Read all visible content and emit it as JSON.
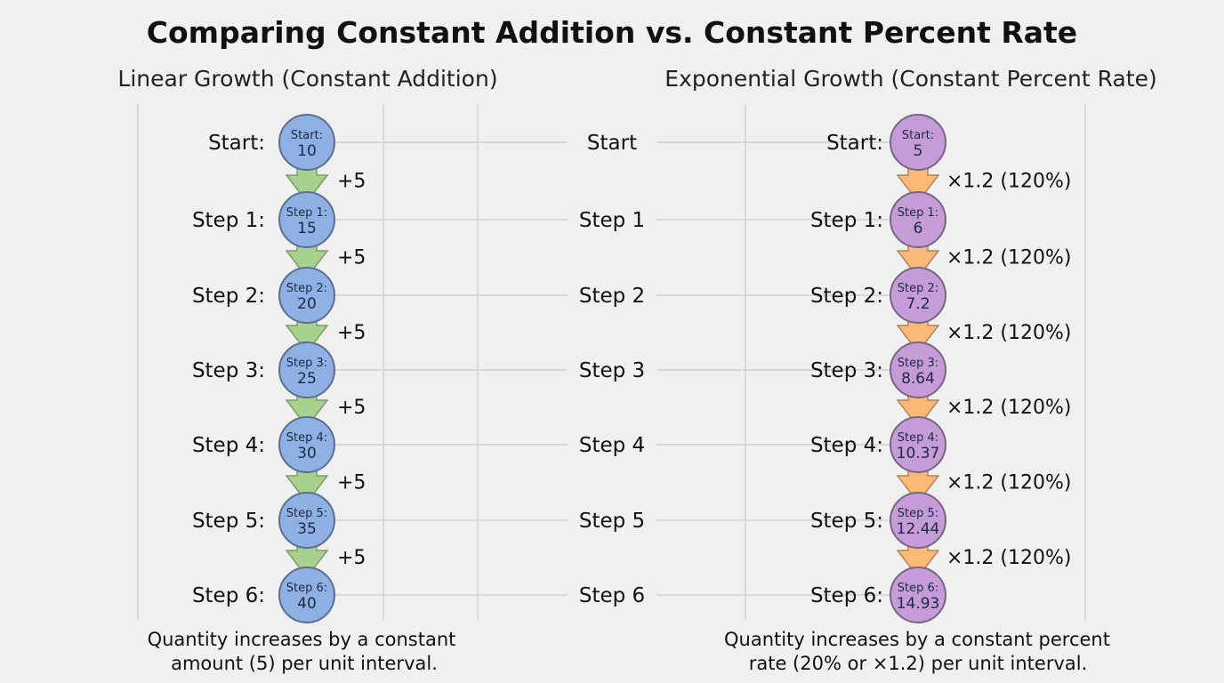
{
  "title": "Comparing Constant Addition vs. Constant Percent Rate",
  "colors": {
    "background": "#f0f0f0",
    "linear_node_fill": "#8fb0e2",
    "linear_node_stroke": "#5b6f90",
    "linear_arrow_fill": "#a9d18e",
    "linear_arrow_stroke": "#7d9a6c",
    "exp_node_fill": "#c59bd8",
    "exp_node_stroke": "#76667f",
    "exp_arrow_fill": "#fbb978",
    "exp_arrow_stroke": "#b3835a",
    "grid": "#cfcfcf"
  },
  "linear": {
    "heading": "Linear Growth (Constant Addition)",
    "steps": [
      {
        "label": "Start:",
        "node_label": "Start:",
        "value": "10"
      },
      {
        "label": "Step 1:",
        "node_label": "Step 1:",
        "value": "15"
      },
      {
        "label": "Step 2:",
        "node_label": "Step 2:",
        "value": "20"
      },
      {
        "label": "Step 3:",
        "node_label": "Step 3:",
        "value": "25"
      },
      {
        "label": "Step 4:",
        "node_label": "Step 4:",
        "value": "30"
      },
      {
        "label": "Step 5:",
        "node_label": "Step 5:",
        "value": "35"
      },
      {
        "label": "Step 6:",
        "node_label": "Step 6:",
        "value": "40"
      }
    ],
    "operation": "+5",
    "caption_line1": "Quantity increases by a constant",
    "caption_line2": "amount (5) per unit interval."
  },
  "middle_labels": [
    "Start",
    "Step 1",
    "Step 2",
    "Step 3",
    "Step 4",
    "Step 5",
    "Step 6"
  ],
  "exponential": {
    "heading": "Exponential Growth (Constant Percent Rate)",
    "steps": [
      {
        "label": "Start:",
        "node_label": "Start:",
        "value": "5"
      },
      {
        "label": "Step 1:",
        "node_label": "Step 1:",
        "value": "6"
      },
      {
        "label": "Step 2:",
        "node_label": "Step 2:",
        "value": "7.2"
      },
      {
        "label": "Step 3:",
        "node_label": "Step 3:",
        "value": "8.64"
      },
      {
        "label": "Step 4:",
        "node_label": "Step 4:",
        "value": "10.37"
      },
      {
        "label": "Step 5:",
        "node_label": "Step 5:",
        "value": "12.44"
      },
      {
        "label": "Step 6:",
        "node_label": "Step 6:",
        "value": "14.93"
      }
    ],
    "operation": "×1.2 (120%)",
    "caption_line1": "Quantity increases by a constant percent",
    "caption_line2": "rate (20% or ×1.2) per unit interval."
  }
}
